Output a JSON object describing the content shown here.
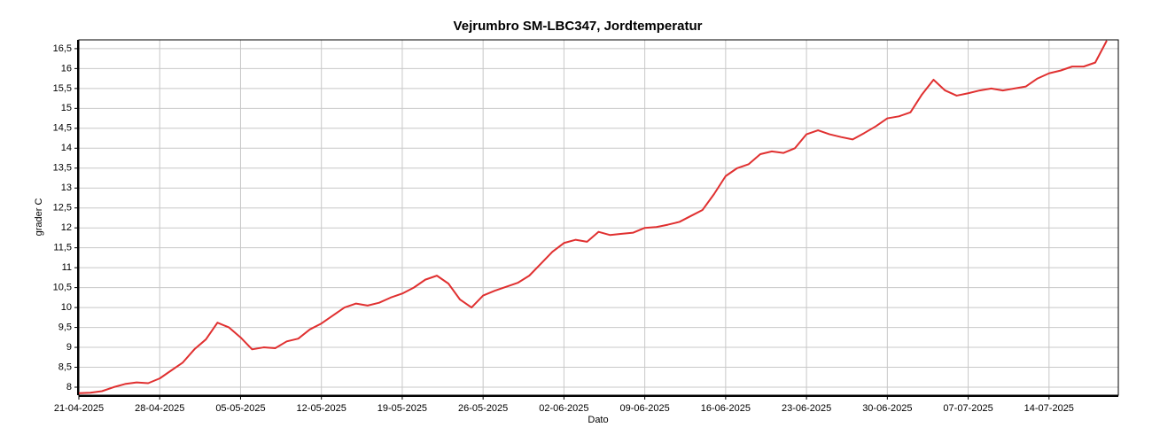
{
  "chart_data": {
    "type": "line",
    "title": "Vejrumbro SM-LBC347, Jordtemperatur",
    "xlabel": "Dato",
    "ylabel": "grader C",
    "x": [
      "21-04-2025",
      "22-04-2025",
      "23-04-2025",
      "24-04-2025",
      "25-04-2025",
      "26-04-2025",
      "27-04-2025",
      "28-04-2025",
      "29-04-2025",
      "30-04-2025",
      "01-05-2025",
      "02-05-2025",
      "03-05-2025",
      "04-05-2025",
      "05-05-2025",
      "06-05-2025",
      "07-05-2025",
      "08-05-2025",
      "09-05-2025",
      "10-05-2025",
      "11-05-2025",
      "12-05-2025",
      "13-05-2025",
      "14-05-2025",
      "15-05-2025",
      "16-05-2025",
      "17-05-2025",
      "18-05-2025",
      "19-05-2025",
      "20-05-2025",
      "21-05-2025",
      "22-05-2025",
      "23-05-2025",
      "24-05-2025",
      "25-05-2025",
      "26-05-2025",
      "27-05-2025",
      "28-05-2025",
      "29-05-2025",
      "30-05-2025",
      "31-05-2025",
      "01-06-2025",
      "02-06-2025",
      "03-06-2025",
      "04-06-2025",
      "05-06-2025",
      "06-06-2025",
      "07-06-2025",
      "08-06-2025",
      "09-06-2025",
      "10-06-2025",
      "11-06-2025",
      "12-06-2025",
      "13-06-2025",
      "14-06-2025",
      "15-06-2025",
      "16-06-2025",
      "17-06-2025",
      "18-06-2025",
      "19-06-2025",
      "20-06-2025",
      "21-06-2025",
      "22-06-2025",
      "23-06-2025",
      "24-06-2025",
      "25-06-2025",
      "26-06-2025",
      "27-06-2025",
      "28-06-2025",
      "29-06-2025",
      "30-06-2025",
      "01-07-2025",
      "02-07-2025",
      "03-07-2025",
      "04-07-2025",
      "05-07-2025",
      "06-07-2025",
      "07-07-2025",
      "08-07-2025",
      "09-07-2025",
      "10-07-2025",
      "11-07-2025",
      "12-07-2025",
      "13-07-2025",
      "14-07-2025",
      "15-07-2025",
      "16-07-2025",
      "17-07-2025",
      "18-07-2025",
      "19-07-2025"
    ],
    "series": [
      {
        "name": "Jordtemperatur",
        "color": "#e03030",
        "values": [
          7.85,
          7.86,
          7.9,
          8.0,
          8.08,
          8.12,
          8.1,
          8.22,
          8.42,
          8.62,
          8.95,
          9.2,
          9.62,
          9.5,
          9.25,
          8.95,
          9.0,
          8.98,
          9.15,
          9.22,
          9.45,
          9.6,
          9.8,
          10.0,
          10.1,
          10.05,
          10.12,
          10.25,
          10.35,
          10.5,
          10.7,
          10.8,
          10.6,
          10.2,
          10.0,
          10.3,
          10.42,
          10.52,
          10.62,
          10.8,
          11.1,
          11.4,
          11.62,
          11.7,
          11.65,
          11.9,
          11.82,
          11.85,
          11.88,
          12.0,
          12.02,
          12.08,
          12.15,
          12.3,
          12.45,
          12.85,
          13.3,
          13.5,
          13.6,
          13.85,
          13.92,
          13.88,
          14.0,
          14.35,
          14.45,
          14.35,
          14.28,
          14.22,
          14.38,
          14.55,
          14.75,
          14.8,
          14.9,
          15.35,
          15.72,
          15.45,
          15.32,
          15.38,
          15.45,
          15.5,
          15.45,
          15.5,
          15.55,
          15.75,
          15.88,
          15.95,
          16.05,
          16.05,
          16.15,
          16.7
        ]
      }
    ],
    "xlim": [
      "21-04-2025",
      "20-07-2025"
    ],
    "xticks": [
      "21-04-2025",
      "28-04-2025",
      "05-05-2025",
      "12-05-2025",
      "19-05-2025",
      "26-05-2025",
      "02-06-2025",
      "09-06-2025",
      "16-06-2025",
      "23-06-2025",
      "30-06-2025",
      "07-07-2025",
      "14-07-2025"
    ],
    "ylim": [
      7.8,
      16.72
    ],
    "yticks": [
      8,
      {
        "value": 8.5,
        "label": "8,5"
      },
      9,
      {
        "value": 9.5,
        "label": "9,5"
      },
      10,
      {
        "value": 10.5,
        "label": "10,5"
      },
      11,
      {
        "value": 11.5,
        "label": "11,5"
      },
      12,
      {
        "value": 12.5,
        "label": "12,5"
      },
      13,
      {
        "value": 13.5,
        "label": "13,5"
      },
      14,
      {
        "value": 14.5,
        "label": "14,5"
      },
      15,
      {
        "value": 15.5,
        "label": "15,5"
      },
      16,
      {
        "value": 16.5,
        "label": "16,5"
      }
    ],
    "grid": true
  }
}
